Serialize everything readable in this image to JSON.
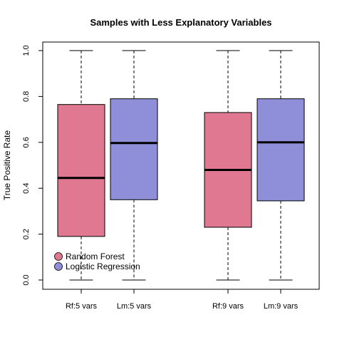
{
  "chart_data": {
    "type": "box",
    "title": "Samples with Less Explanatory Variables",
    "xlabel": "",
    "ylabel": "True Positive Rate",
    "ylim": [
      0,
      1
    ],
    "yticks": [
      "0.0",
      "0.2",
      "0.4",
      "0.6",
      "0.8",
      "1.0"
    ],
    "grid": false,
    "legend_position": "bottom-left",
    "colors": {
      "rf": "#E07891",
      "lm": "#8F8FD9"
    },
    "categories": [
      "Rf:5 vars",
      "Lm:5 vars",
      "Rf:9 vars",
      "Lm:9 vars"
    ],
    "boxes": [
      {
        "label": "Rf:5 vars",
        "series": "rf",
        "min": 0.0,
        "q1": 0.19,
        "median": 0.445,
        "q3": 0.765,
        "max": 1.0
      },
      {
        "label": "Lm:5 vars",
        "series": "lm",
        "min": 0.0,
        "q1": 0.35,
        "median": 0.597,
        "q3": 0.79,
        "max": 1.0
      },
      {
        "label": "Rf:9 vars",
        "series": "rf",
        "min": 0.0,
        "q1": 0.23,
        "median": 0.48,
        "q3": 0.73,
        "max": 1.0
      },
      {
        "label": "Lm:9 vars",
        "series": "lm",
        "min": 0.0,
        "q1": 0.345,
        "median": 0.6,
        "q3": 0.79,
        "max": 1.0
      }
    ],
    "legend": [
      {
        "name": "Random Forest",
        "series": "rf"
      },
      {
        "name": "Logistic Regression",
        "series": "lm"
      }
    ]
  }
}
